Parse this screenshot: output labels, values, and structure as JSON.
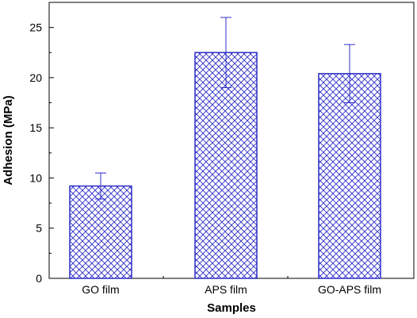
{
  "chart_data": {
    "type": "bar",
    "categories": [
      "GO film",
      "APS film",
      "GO-APS film"
    ],
    "values": [
      9.2,
      22.5,
      20.4
    ],
    "error_bars": [
      {
        "low": 7.9,
        "high": 10.5
      },
      {
        "low": 19.0,
        "high": 26.0
      },
      {
        "low": 17.5,
        "high": 23.3
      }
    ],
    "xlabel": "Samples",
    "ylabel": "Adhesion (MPa)",
    "ylim": [
      0,
      27.5
    ],
    "yticks": [
      0,
      5,
      10,
      15,
      20,
      25
    ],
    "ytick_labels": [
      "0",
      "5",
      "10",
      "15",
      "20",
      "25"
    ],
    "grid": false,
    "legend": false,
    "bar_fill": "crosshatch",
    "bar_color": "#2d2dc8"
  }
}
